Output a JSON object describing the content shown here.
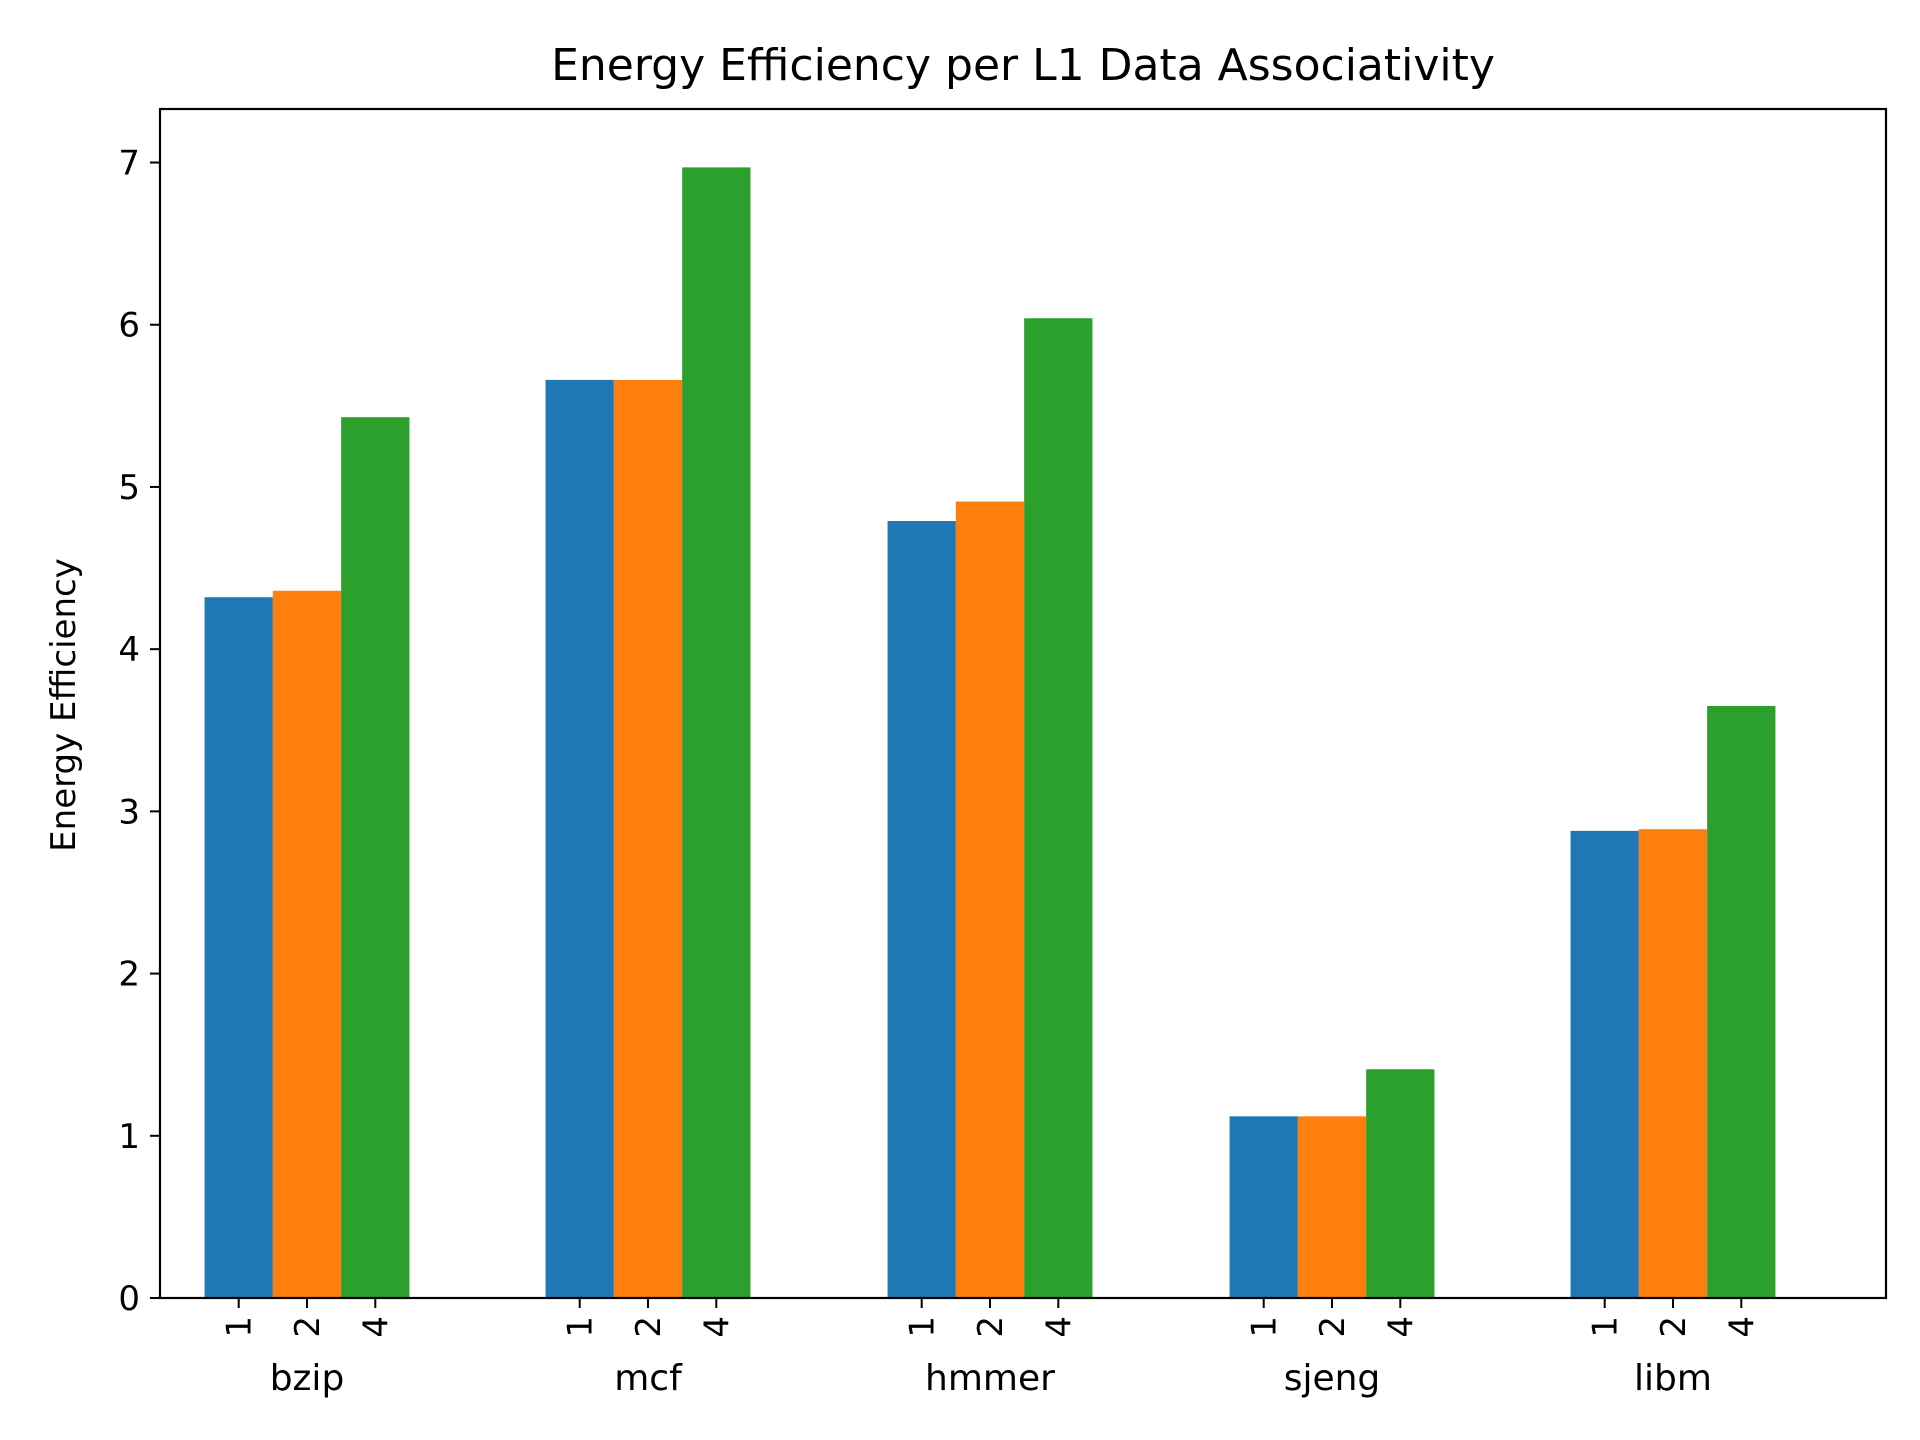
{
  "chart_data": {
    "type": "bar",
    "title": "Energy Efficiency per L1 Data Associativity",
    "xlabel": "",
    "ylabel": "Energy Efficiency",
    "categories": [
      "bzip",
      "mcf",
      "hmmer",
      "sjeng",
      "libm"
    ],
    "group_tick_labels": [
      "1",
      "2",
      "4"
    ],
    "series": [
      {
        "name": "1",
        "color": "#1f77b4",
        "values": [
          4.32,
          5.66,
          4.79,
          1.12,
          2.88
        ]
      },
      {
        "name": "2",
        "color": "#ff7f0e",
        "values": [
          4.36,
          5.66,
          4.91,
          1.12,
          2.89
        ]
      },
      {
        "name": "4",
        "color": "#2ca02c",
        "values": [
          5.43,
          6.97,
          6.04,
          1.41,
          3.65
        ]
      }
    ],
    "ylim": [
      0,
      7.33
    ],
    "yticks": [
      0,
      1,
      2,
      3,
      4,
      5,
      6,
      7
    ],
    "grid": false,
    "legend": "none"
  }
}
